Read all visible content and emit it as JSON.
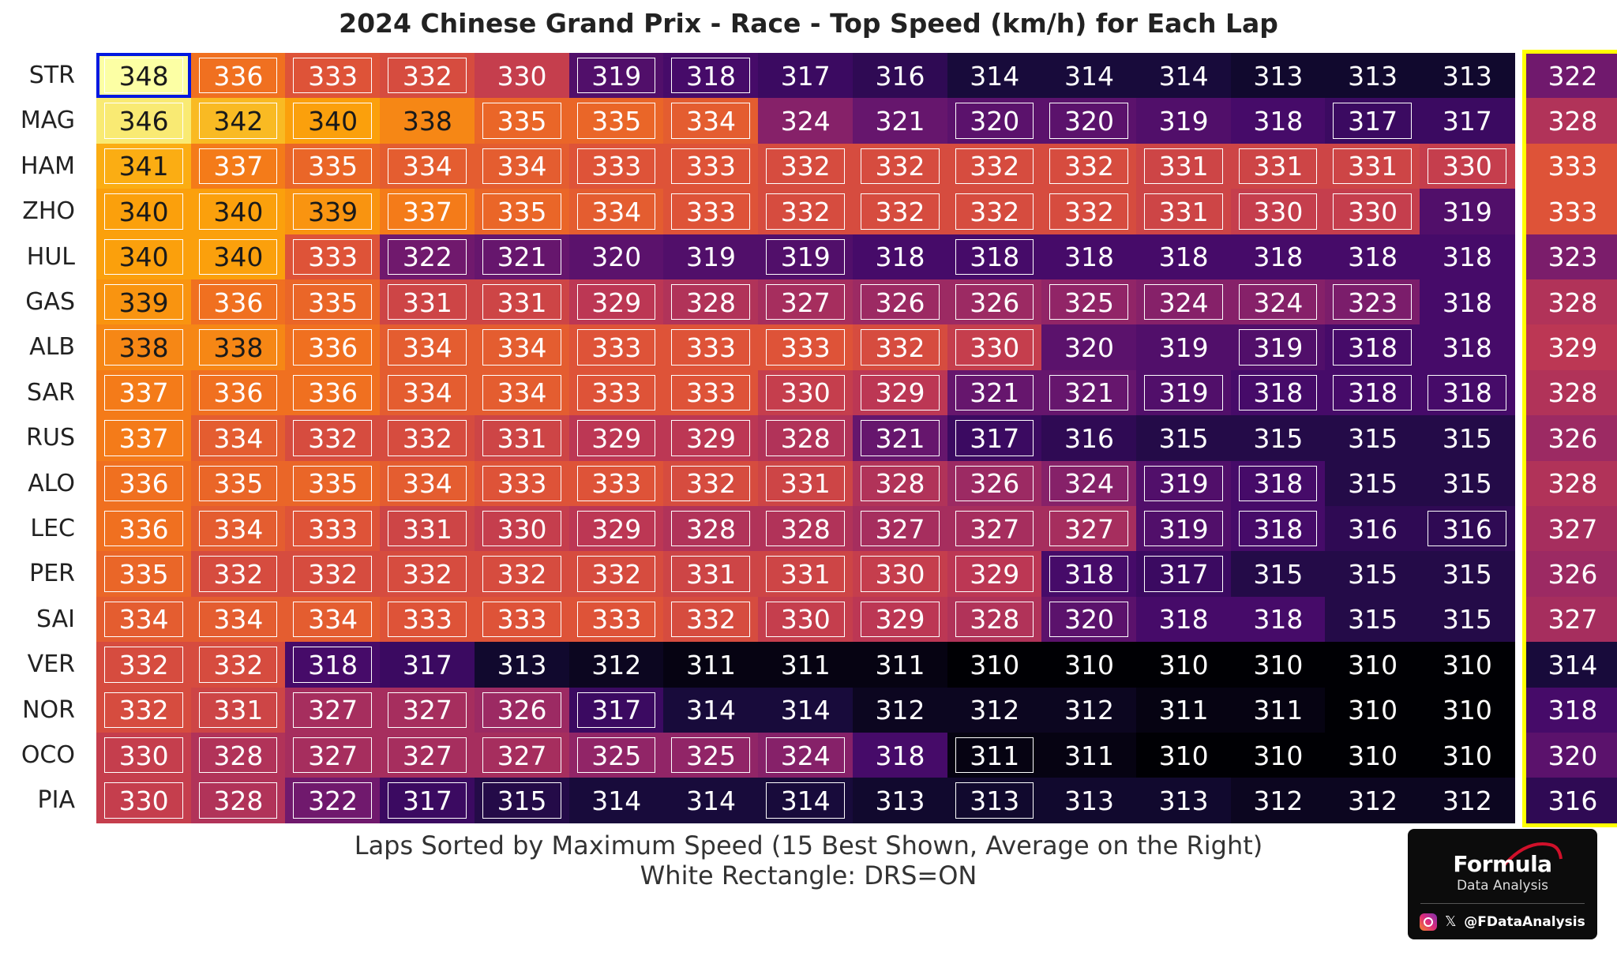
{
  "chart_data": {
    "type": "heatmap",
    "title": "2024 Chinese Grand Prix - Race - Top Speed (km/h) for Each Lap",
    "xlabel_lines": [
      "Laps Sorted by Maximum Speed (15 Best Shown, Average on the Right)",
      "White Rectangle: DRS=ON"
    ],
    "colormap": "inferno",
    "color_range": [
      310,
      348
    ],
    "rows": [
      "STR",
      "MAG",
      "HAM",
      "ZHO",
      "HUL",
      "GAS",
      "ALB",
      "SAR",
      "RUS",
      "ALO",
      "LEC",
      "PER",
      "SAI",
      "VER",
      "NOR",
      "OCO",
      "PIA"
    ],
    "values": [
      [
        348,
        336,
        333,
        332,
        330,
        319,
        318,
        317,
        316,
        314,
        314,
        314,
        313,
        313,
        313
      ],
      [
        346,
        342,
        340,
        338,
        335,
        335,
        334,
        324,
        321,
        320,
        320,
        319,
        318,
        317,
        317
      ],
      [
        341,
        337,
        335,
        334,
        334,
        333,
        333,
        332,
        332,
        332,
        332,
        331,
        331,
        331,
        330
      ],
      [
        340,
        340,
        339,
        337,
        335,
        334,
        333,
        332,
        332,
        332,
        332,
        331,
        330,
        330,
        319
      ],
      [
        340,
        340,
        333,
        322,
        321,
        320,
        319,
        319,
        318,
        318,
        318,
        318,
        318,
        318,
        318
      ],
      [
        339,
        336,
        335,
        331,
        331,
        329,
        328,
        327,
        326,
        326,
        325,
        324,
        324,
        323,
        318
      ],
      [
        338,
        338,
        336,
        334,
        334,
        333,
        333,
        333,
        332,
        330,
        320,
        319,
        319,
        318,
        318
      ],
      [
        337,
        336,
        336,
        334,
        334,
        333,
        333,
        330,
        329,
        321,
        321,
        319,
        318,
        318,
        318
      ],
      [
        337,
        334,
        332,
        332,
        331,
        329,
        329,
        328,
        321,
        317,
        316,
        315,
        315,
        315,
        315
      ],
      [
        336,
        335,
        335,
        334,
        333,
        333,
        332,
        331,
        328,
        326,
        324,
        319,
        318,
        315,
        315
      ],
      [
        336,
        334,
        333,
        331,
        330,
        329,
        328,
        328,
        327,
        327,
        327,
        319,
        318,
        316,
        316
      ],
      [
        335,
        332,
        332,
        332,
        332,
        332,
        331,
        331,
        330,
        329,
        318,
        317,
        315,
        315,
        315
      ],
      [
        334,
        334,
        334,
        333,
        333,
        333,
        332,
        330,
        329,
        328,
        320,
        318,
        318,
        315,
        315
      ],
      [
        332,
        332,
        318,
        317,
        313,
        312,
        311,
        311,
        311,
        310,
        310,
        310,
        310,
        310,
        310
      ],
      [
        332,
        331,
        327,
        327,
        326,
        317,
        314,
        314,
        312,
        312,
        312,
        311,
        311,
        310,
        310
      ],
      [
        330,
        328,
        327,
        327,
        327,
        325,
        325,
        324,
        318,
        311,
        311,
        310,
        310,
        310,
        310
      ],
      [
        330,
        328,
        322,
        317,
        315,
        314,
        314,
        314,
        313,
        313,
        313,
        313,
        312,
        312,
        312
      ]
    ],
    "drs": [
      [
        1,
        1,
        1,
        1,
        0,
        1,
        1,
        0,
        0,
        0,
        0,
        0,
        0,
        0,
        0
      ],
      [
        1,
        1,
        1,
        0,
        1,
        1,
        1,
        0,
        0,
        1,
        1,
        0,
        0,
        1,
        0
      ],
      [
        1,
        1,
        1,
        1,
        1,
        1,
        1,
        1,
        1,
        1,
        1,
        1,
        1,
        1,
        1
      ],
      [
        1,
        1,
        1,
        1,
        1,
        1,
        1,
        1,
        1,
        1,
        1,
        1,
        1,
        1,
        0
      ],
      [
        1,
        1,
        1,
        1,
        1,
        0,
        0,
        1,
        0,
        1,
        0,
        0,
        0,
        0,
        0
      ],
      [
        1,
        1,
        1,
        1,
        1,
        1,
        1,
        1,
        1,
        1,
        1,
        1,
        1,
        1,
        0
      ],
      [
        1,
        1,
        1,
        1,
        1,
        1,
        1,
        1,
        1,
        1,
        0,
        0,
        1,
        1,
        0
      ],
      [
        1,
        1,
        1,
        1,
        1,
        1,
        1,
        1,
        1,
        1,
        1,
        1,
        1,
        1,
        1
      ],
      [
        1,
        1,
        1,
        1,
        1,
        1,
        1,
        1,
        1,
        1,
        0,
        0,
        0,
        0,
        0
      ],
      [
        1,
        1,
        1,
        1,
        1,
        1,
        1,
        1,
        1,
        1,
        1,
        1,
        1,
        0,
        0
      ],
      [
        1,
        1,
        1,
        1,
        1,
        1,
        1,
        1,
        1,
        1,
        1,
        1,
        1,
        0,
        1
      ],
      [
        1,
        1,
        1,
        1,
        1,
        1,
        1,
        1,
        1,
        1,
        1,
        1,
        0,
        0,
        0
      ],
      [
        1,
        1,
        1,
        1,
        1,
        1,
        1,
        1,
        1,
        1,
        1,
        0,
        0,
        0,
        0
      ],
      [
        1,
        1,
        1,
        0,
        0,
        0,
        0,
        0,
        0,
        0,
        0,
        0,
        0,
        0,
        0
      ],
      [
        1,
        1,
        1,
        1,
        1,
        1,
        0,
        0,
        0,
        0,
        0,
        0,
        0,
        0,
        0
      ],
      [
        1,
        1,
        1,
        1,
        1,
        1,
        1,
        1,
        0,
        1,
        0,
        0,
        0,
        0,
        0
      ],
      [
        1,
        1,
        1,
        1,
        1,
        0,
        0,
        1,
        0,
        1,
        0,
        0,
        0,
        0,
        0
      ]
    ],
    "averages": [
      322,
      328,
      333,
      333,
      323,
      328,
      329,
      328,
      326,
      328,
      327,
      326,
      327,
      314,
      318,
      320,
      316
    ],
    "highlight_max": {
      "row": "STR",
      "lap_index": 0,
      "value": 348
    }
  },
  "logo": {
    "brand": "Formula",
    "sub": "Data Analysis",
    "handle": "@FDataAnalysis",
    "icons": [
      "instagram-icon",
      "x-icon"
    ]
  }
}
